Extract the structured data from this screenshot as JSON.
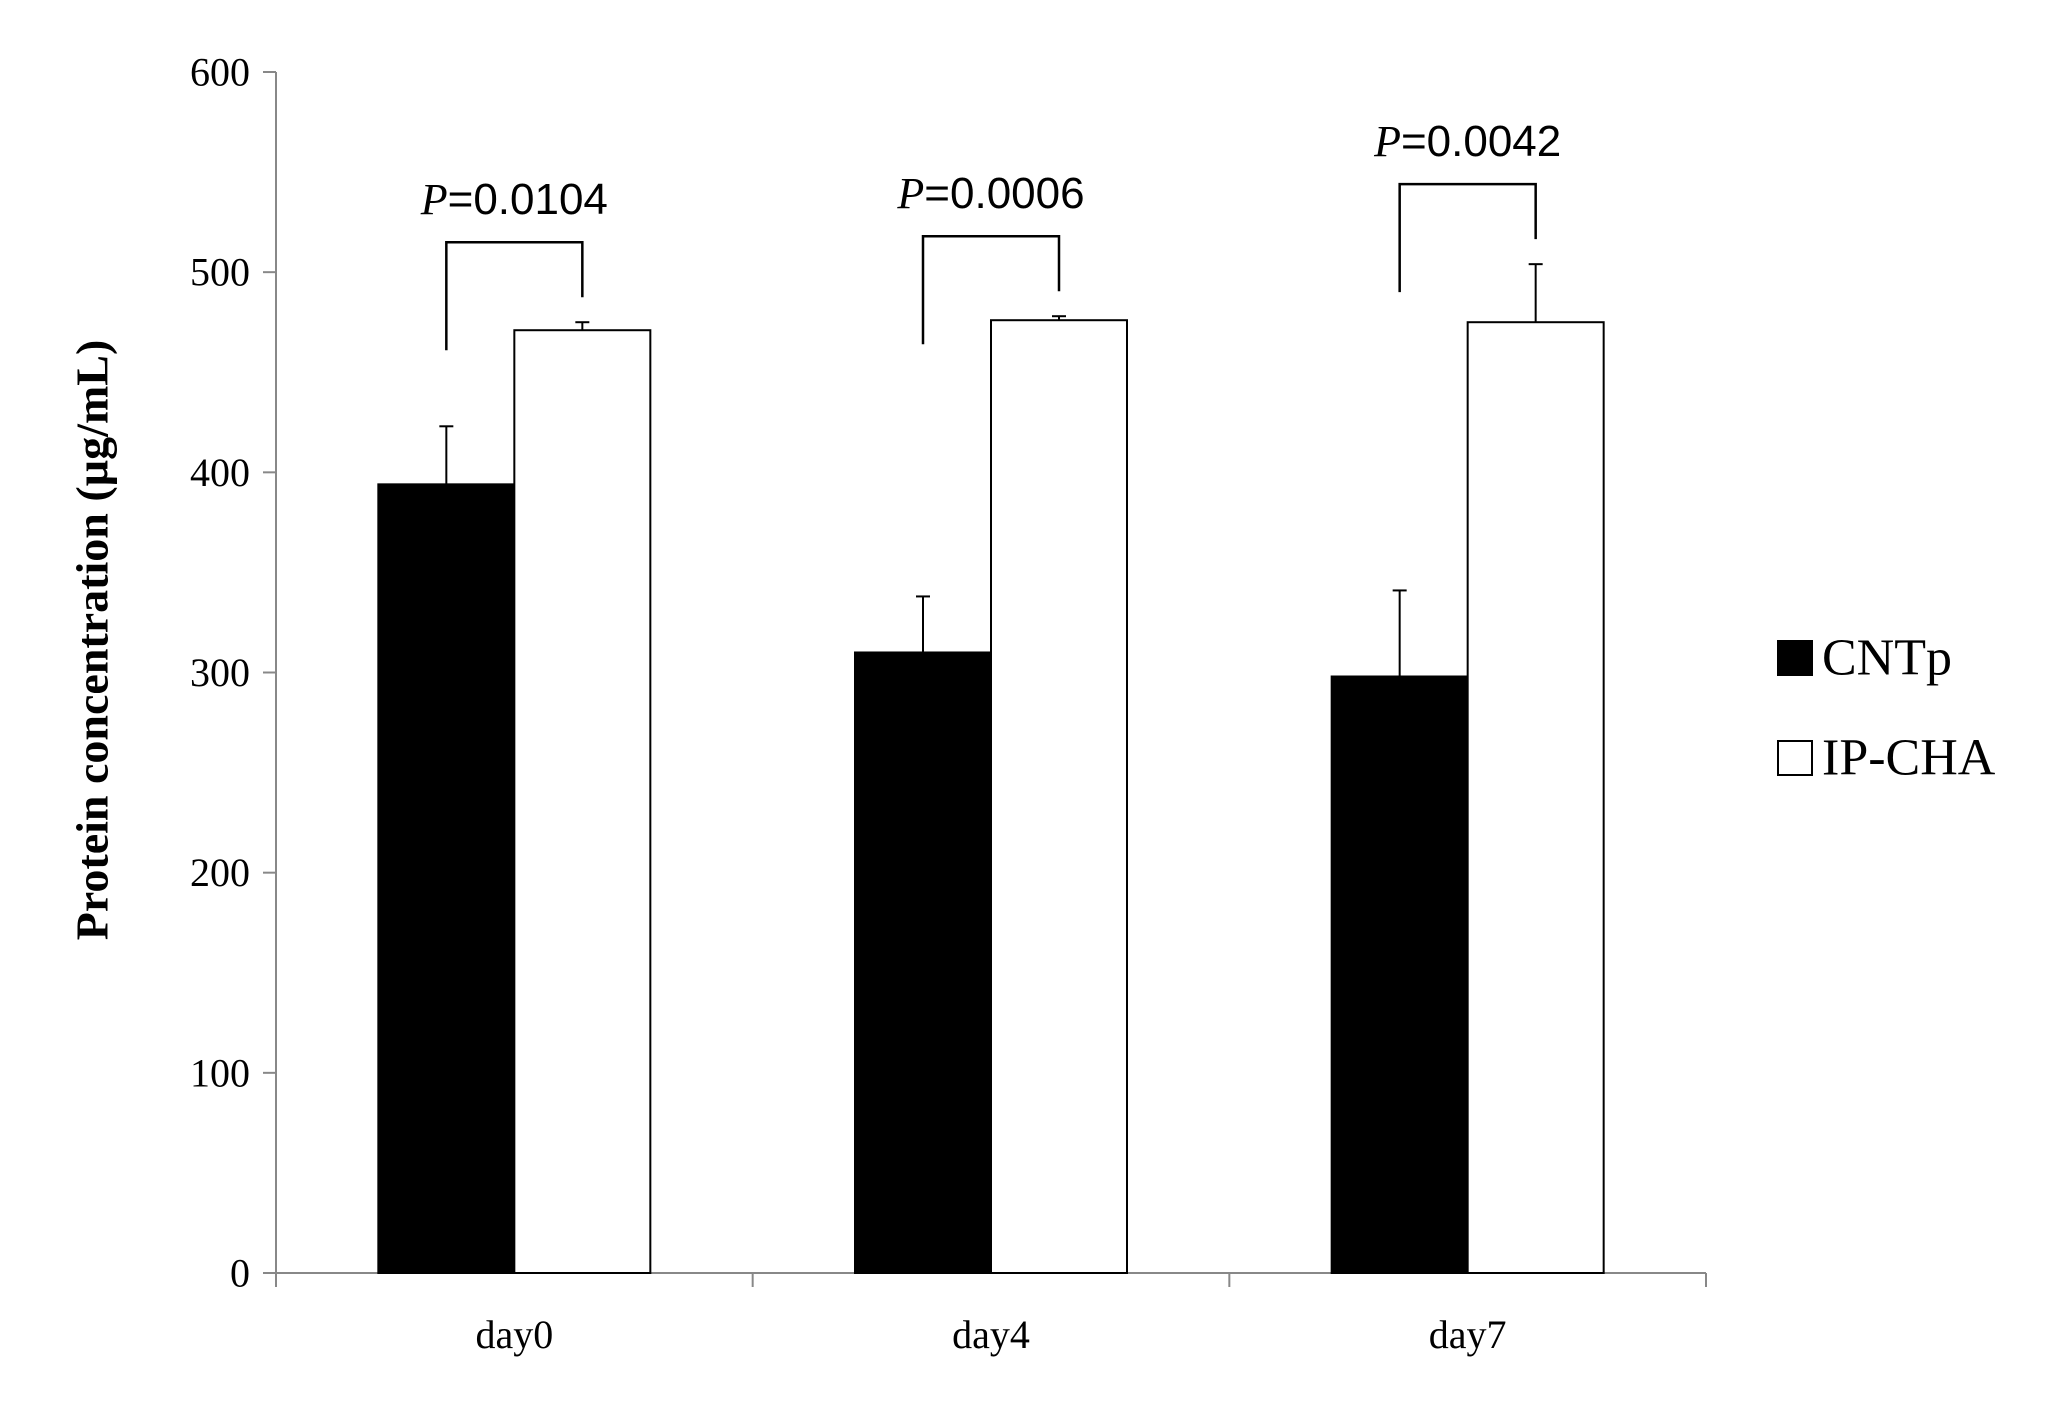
{
  "chart_data": {
    "type": "bar",
    "categories": [
      "day0",
      "day4",
      "day7"
    ],
    "ylabel": "Protein concentration (µg/mL)",
    "ylim": [
      0,
      600
    ],
    "yticks": [
      0,
      100,
      200,
      300,
      400,
      500,
      600
    ],
    "grid": false,
    "legend_position": "right",
    "series": [
      {
        "name": "CNTp",
        "color": "#000000",
        "values": [
          394,
          310,
          298
        ],
        "errors": [
          29,
          28,
          43
        ]
      },
      {
        "name": "IP-CHA",
        "color": "#ffffff",
        "values": [
          471,
          476,
          475
        ],
        "errors": [
          4,
          2,
          29
        ]
      }
    ],
    "annotations": [
      {
        "prefix": "P",
        "text": "=0.0104",
        "category": "day0"
      },
      {
        "prefix": "P",
        "text": "=0.0006",
        "category": "day4"
      },
      {
        "prefix": "P",
        "text": "=0.0042",
        "category": "day7"
      }
    ]
  }
}
